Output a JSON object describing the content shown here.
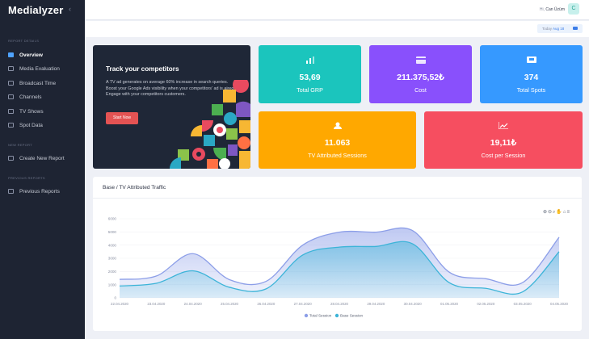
{
  "app": {
    "logo": "MediaIyzer",
    "collapse_icon": "chevron-left-icon"
  },
  "sidebar": {
    "section_report_details": "REPORT DETAILS",
    "items": [
      {
        "label": "Overview",
        "icon": "overview-icon",
        "active": true
      },
      {
        "label": "Media Evaluation",
        "icon": "media-evaluation-icon"
      },
      {
        "label": "Broadcast Time",
        "icon": "broadcast-time-icon"
      },
      {
        "label": "Channels",
        "icon": "channels-icon"
      },
      {
        "label": "TV Shows",
        "icon": "tv-shows-icon"
      },
      {
        "label": "Spot Data",
        "icon": "spot-data-icon"
      }
    ],
    "section_new_report": "NEW REPORT",
    "new_report_item": {
      "label": "Create New Report",
      "icon": "create-report-icon"
    },
    "section_previous_reports": "PREVIOUS REPORTS",
    "previous_reports_item": {
      "label": "Previous Reports",
      "icon": "previous-reports-icon"
    }
  },
  "header": {
    "greeting": "Hi,",
    "user_name": "Can Üzüm",
    "avatar_letter": "C"
  },
  "date_filter": {
    "prefix": "Today",
    "value": "Aug 18",
    "icon": "calendar-icon"
  },
  "promo": {
    "title": "Track your competitors",
    "body": "A TV ad generates on average 60% increase in search queries. Boost your Google Ads visibility when your competitors' ad is aired. Engage with your competitors customers.",
    "button": "Start Now"
  },
  "stats": [
    {
      "value": "53,69",
      "label": "Total GRP",
      "icon": "bar-chart-icon",
      "color": "#1bc5bd"
    },
    {
      "value": "211.375,52₺",
      "label": "Cost",
      "icon": "credit-card-icon",
      "color": "#8950fc"
    },
    {
      "value": "374",
      "label": "Total Spots",
      "icon": "tv-icon",
      "color": "#3699ff"
    },
    {
      "value": "11.063",
      "label": "TV Attributed Sessions",
      "icon": "users-icon",
      "color": "#ffa800"
    },
    {
      "value": "19,11₺",
      "label": "Cost per Session",
      "icon": "line-chart-icon",
      "color": "#f64e60"
    }
  ],
  "chart_panel": {
    "title": "Base / TV Attributed Traffic",
    "toolbar_icons": [
      "zoom-in-icon",
      "zoom-out-icon",
      "zoom-select-icon",
      "pan-icon",
      "home-icon",
      "menu-icon"
    ]
  },
  "chart_data": {
    "type": "area",
    "x": [
      "22.04.2020",
      "23.04.2020",
      "24.04.2020",
      "25.04.2020",
      "26.04.2020",
      "27.04.2020",
      "28.04.2020",
      "29.04.2020",
      "30.04.2020",
      "01.05.2020",
      "02.05.2020",
      "03.05.2020",
      "04.05.2020"
    ],
    "series": [
      {
        "name": "Total Session",
        "color": "#8c9ee8",
        "values": [
          1400,
          1650,
          3350,
          1380,
          1250,
          4000,
          4980,
          4980,
          5100,
          1950,
          1450,
          1150,
          4600
        ]
      },
      {
        "name": "Base Session",
        "color": "#3cb4d8",
        "values": [
          900,
          1100,
          2050,
          800,
          680,
          3250,
          3850,
          3900,
          4100,
          1150,
          720,
          450,
          3500
        ]
      }
    ],
    "ylim": [
      0,
      6000
    ],
    "yticks": [
      0,
      1000,
      2000,
      3000,
      4000,
      5000,
      6000
    ],
    "legend": "bottom-center"
  }
}
